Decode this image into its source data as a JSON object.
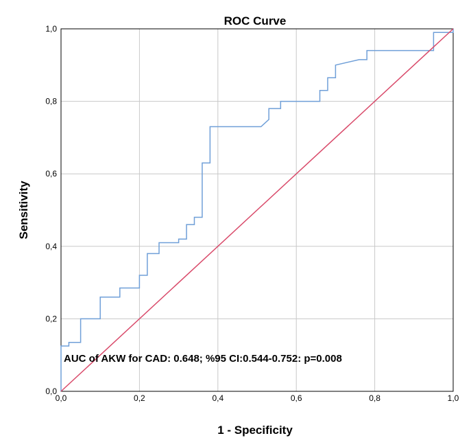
{
  "chart_data": {
    "type": "line",
    "title": "ROC Curve",
    "xlabel": "1 - Specificity",
    "ylabel": "Sensitivity",
    "xlim": [
      0,
      1
    ],
    "ylim": [
      0,
      1
    ],
    "x_ticks": [
      "0,0",
      "0,2",
      "0,4",
      "0,6",
      "0,8",
      "1,0"
    ],
    "y_ticks": [
      "0,0",
      "0,2",
      "0,4",
      "0,6",
      "0,8",
      "1,0"
    ],
    "grid": true,
    "annotation": "AUC of AKW for CAD: 0.648; %95 CI:0.544-0.752: p=0.008",
    "series": [
      {
        "color": "#6f9fd8",
        "x": [
          0.0,
          0.0,
          0.02,
          0.02,
          0.05,
          0.05,
          0.1,
          0.1,
          0.15,
          0.15,
          0.2,
          0.2,
          0.22,
          0.22,
          0.25,
          0.25,
          0.3,
          0.3,
          0.32,
          0.32,
          0.34,
          0.34,
          0.36,
          0.36,
          0.38,
          0.38,
          0.51,
          0.53,
          0.53,
          0.56,
          0.56,
          0.66,
          0.66,
          0.68,
          0.68,
          0.7,
          0.7,
          0.76,
          0.78,
          0.78,
          0.95,
          0.95,
          1.0,
          1.0
        ],
        "y": [
          0.0,
          0.125,
          0.125,
          0.135,
          0.135,
          0.2,
          0.2,
          0.26,
          0.26,
          0.285,
          0.285,
          0.32,
          0.32,
          0.38,
          0.38,
          0.41,
          0.41,
          0.42,
          0.42,
          0.46,
          0.46,
          0.48,
          0.48,
          0.63,
          0.63,
          0.73,
          0.73,
          0.75,
          0.78,
          0.78,
          0.8,
          0.8,
          0.83,
          0.83,
          0.865,
          0.865,
          0.9,
          0.915,
          0.915,
          0.94,
          0.94,
          0.99,
          0.99,
          1.0
        ]
      },
      {
        "color": "#d94a6a",
        "x": [
          0,
          1
        ],
        "y": [
          0,
          1
        ]
      }
    ]
  }
}
